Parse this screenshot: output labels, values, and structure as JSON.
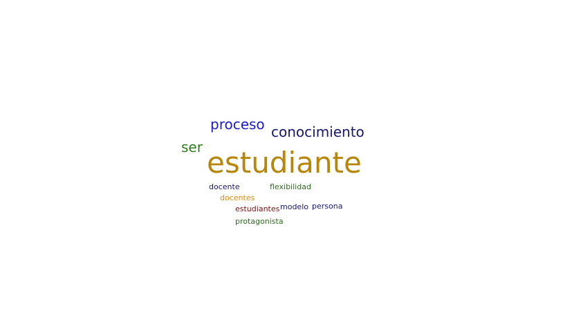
{
  "word_cloud": {
    "words": [
      {
        "key": "estudiante",
        "text": "estudiante",
        "color": "#b8860b"
      },
      {
        "key": "proceso",
        "text": "proceso",
        "color": "#1a1acd"
      },
      {
        "key": "conocimiento",
        "text": "conocimiento",
        "color": "#16166e"
      },
      {
        "key": "ser",
        "text": "ser",
        "color": "#2e7d1e"
      },
      {
        "key": "docente",
        "text": "docente",
        "color": "#16166e"
      },
      {
        "key": "flexibilidad",
        "text": "flexibilidad",
        "color": "#2e6b1e"
      },
      {
        "key": "docentes",
        "text": "docentes",
        "color": "#e68a00"
      },
      {
        "key": "estudiantes",
        "text": "estudiantes",
        "color": "#7a1010"
      },
      {
        "key": "modelo",
        "text": "modelo",
        "color": "#16166e"
      },
      {
        "key": "persona",
        "text": "persona",
        "color": "#16166e"
      },
      {
        "key": "protagonista",
        "text": "protagonista",
        "color": "#2e6b1e"
      }
    ]
  }
}
